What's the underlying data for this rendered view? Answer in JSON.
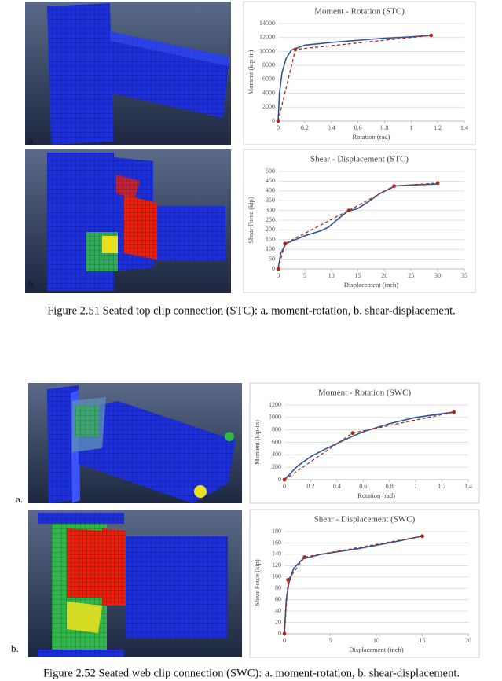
{
  "chart_data": [
    {
      "type": "line",
      "title": "Moment - Rotation (STC)",
      "x_label": "Rotation (rad)",
      "y_label": "Moment (kip-in)",
      "xlim": [
        0,
        1.4
      ],
      "xticks": [
        0,
        0.2,
        0.4,
        0.6,
        0.8,
        1,
        1.2,
        1.4
      ],
      "ylim": [
        0,
        14000
      ],
      "yticks": [
        0,
        2000,
        4000,
        6000,
        8000,
        10000,
        12000,
        14000
      ],
      "grid": true,
      "series": [
        {
          "color": "#2e5597",
          "line_style": "solid",
          "x": [
            0,
            0.01,
            0.03,
            0.06,
            0.1,
            0.2,
            0.4,
            0.6,
            0.8,
            1.0,
            1.15
          ],
          "values": [
            0,
            4000,
            7000,
            9000,
            10200,
            10900,
            11300,
            11600,
            11900,
            12100,
            12300
          ]
        },
        {
          "color": "#a52a1e",
          "line_style": "dashed",
          "marker": "circle",
          "x": [
            0,
            0.13,
            1.15
          ],
          "values": [
            0,
            10300,
            12300
          ]
        }
      ]
    },
    {
      "type": "line",
      "title": "Shear - Displacement (STC)",
      "x_label": "Displacement (inch)",
      "y_label": "Shear Force (kip)",
      "xlim": [
        0,
        35
      ],
      "xticks": [
        0,
        5,
        10,
        15,
        20,
        25,
        30,
        35
      ],
      "ylim": [
        0,
        500
      ],
      "yticks": [
        0,
        50,
        100,
        150,
        200,
        250,
        300,
        350,
        400,
        450,
        500
      ],
      "grid": true,
      "series": [
        {
          "color": "#2e5597",
          "line_style": "solid",
          "x": [
            0,
            0.5,
            1.5,
            5,
            8,
            9.5,
            11,
            13,
            15,
            17,
            19,
            22,
            25,
            30
          ],
          "values": [
            0,
            80,
            130,
            170,
            195,
            215,
            250,
            295,
            310,
            345,
            385,
            425,
            430,
            435
          ]
        },
        {
          "color": "#a52a1e",
          "line_style": "dashed",
          "marker": "circle",
          "x": [
            0,
            1.3,
            13.3,
            21.8,
            30
          ],
          "values": [
            0,
            130,
            300,
            425,
            440
          ]
        }
      ]
    },
    {
      "type": "line",
      "title": "Moment - Rotation (SWC)",
      "x_label": "Rotation (rad)",
      "y_label": "Moment (kip-in)",
      "xlim": [
        0,
        1.4
      ],
      "xticks": [
        0,
        0.2,
        0.4,
        0.6,
        0.8,
        1,
        1.2,
        1.4
      ],
      "ylim": [
        0,
        1200
      ],
      "yticks": [
        0,
        200,
        400,
        600,
        800,
        1000,
        1200
      ],
      "grid": true,
      "series": [
        {
          "color": "#2e5597",
          "line_style": "solid",
          "x": [
            0,
            0.1,
            0.2,
            0.3,
            0.4,
            0.5,
            0.6,
            0.8,
            1.0,
            1.2,
            1.29
          ],
          "values": [
            0,
            220,
            370,
            480,
            580,
            680,
            770,
            900,
            1000,
            1060,
            1085
          ]
        },
        {
          "color": "#a52a1e",
          "line_style": "dashed",
          "marker": "circle",
          "x": [
            0,
            0.52,
            1.29
          ],
          "values": [
            0,
            750,
            1085
          ]
        }
      ]
    },
    {
      "type": "line",
      "title": "Shear - Displacement (SWC)",
      "x_label": "Displacement (inch)",
      "y_label": "Shear Force (kip)",
      "xlim": [
        0,
        20
      ],
      "xticks": [
        0,
        5,
        10,
        15,
        20
      ],
      "ylim": [
        0,
        180
      ],
      "yticks": [
        0,
        20,
        40,
        60,
        80,
        100,
        120,
        140,
        160,
        180
      ],
      "grid": true,
      "series": [
        {
          "color": "#2e5597",
          "line_style": "solid",
          "x": [
            0,
            0.2,
            0.5,
            1,
            2,
            4,
            8,
            12,
            15
          ],
          "values": [
            0,
            60,
            90,
            115,
            132,
            140,
            150,
            162,
            172
          ]
        },
        {
          "color": "#a52a1e",
          "line_style": "dashed",
          "marker": "circle",
          "x": [
            0,
            0.4,
            2.2,
            15
          ],
          "values": [
            0,
            95,
            135,
            172
          ]
        }
      ]
    }
  ],
  "figures": [
    {
      "caption": "Figure 2.51 Seated top clip connection (STC): a. moment-rotation, b. shear-displacement.",
      "labels": [
        "a.",
        "b."
      ]
    },
    {
      "caption": "Figure 2.52 Seated web clip connection (SWC): a. moment-rotation, b. shear-displacement.",
      "labels": [
        "a.",
        "b."
      ]
    }
  ]
}
